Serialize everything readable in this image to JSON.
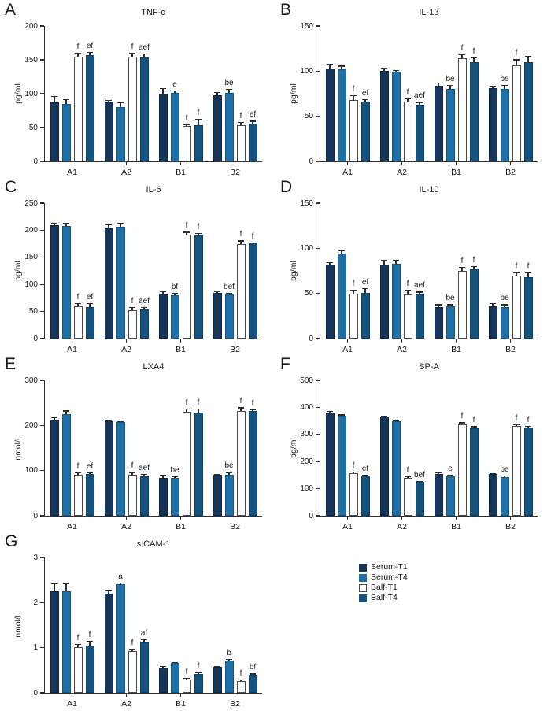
{
  "colors": {
    "serum_t1": "#16355B",
    "serum_t4": "#2070A8",
    "balf_t1_fill": "#FFFFFF",
    "balf_t1_border": "#4A4A4A",
    "balf_t4": "#14537F",
    "axis": "#2F2F2F",
    "error_bar": "#2B2B2B",
    "text": "#1A1A1A"
  },
  "series_styles": [
    {
      "name": "Serum-T1",
      "fill": "#16355B",
      "border": "#10263F"
    },
    {
      "name": "Serum-T4",
      "fill": "#2070A8",
      "border": "#17557F"
    },
    {
      "name": "Balf-T1",
      "fill": "#FFFFFF",
      "border": "#4A4A4A"
    },
    {
      "name": "Balf-T4",
      "fill": "#14537F",
      "border": "#0F3E60"
    }
  ],
  "legend": {
    "position": "bottom-right",
    "entries": [
      {
        "label": "Serum-T1",
        "color": "#16355B"
      },
      {
        "label": "Serum-T4",
        "color": "#2070A8"
      },
      {
        "label": "Balf-T1",
        "color": "#FFFFFF"
      },
      {
        "label": "Balf-T4",
        "color": "#14537F"
      }
    ]
  },
  "chart_data": [
    {
      "type": "bar",
      "letter": "A",
      "title": "TNF-α",
      "ylabel": "pg/ml",
      "ylim": [
        0,
        200
      ],
      "yticks": [
        0,
        50,
        100,
        150,
        200
      ],
      "grid": false,
      "categories": [
        "A1",
        "A2",
        "B1",
        "B2"
      ],
      "series": [
        {
          "name": "Serum-T1",
          "values": [
            87,
            87,
            100,
            98
          ],
          "errors": [
            10,
            4,
            8,
            4
          ],
          "annotations": [
            "",
            "",
            "",
            ""
          ]
        },
        {
          "name": "Serum-T4",
          "values": [
            85,
            80,
            101,
            101
          ],
          "errors": [
            7,
            7,
            4,
            6
          ],
          "annotations": [
            "",
            "",
            "e",
            "be"
          ]
        },
        {
          "name": "Balf-T1",
          "values": [
            155,
            155,
            52,
            54
          ],
          "errors": [
            6,
            6,
            3,
            4
          ],
          "annotations": [
            "f",
            "f",
            "f",
            "f"
          ]
        },
        {
          "name": "Balf-T4",
          "values": [
            157,
            154,
            54,
            56
          ],
          "errors": [
            5,
            5,
            9,
            4
          ],
          "annotations": [
            "ef",
            "aef",
            "f",
            "ef"
          ]
        }
      ]
    },
    {
      "type": "bar",
      "letter": "B",
      "title": "IL-1β",
      "ylabel": "pg/ml",
      "ylim": [
        0,
        150
      ],
      "yticks": [
        0,
        50,
        100,
        150
      ],
      "grid": false,
      "categories": [
        "A1",
        "A2",
        "B1",
        "B2"
      ],
      "series": [
        {
          "name": "Serum-T1",
          "values": [
            103,
            100,
            84,
            81
          ],
          "errors": [
            5,
            4,
            3,
            3
          ],
          "annotations": [
            "",
            "",
            "",
            ""
          ]
        },
        {
          "name": "Serum-T4",
          "values": [
            102,
            99,
            80,
            80
          ],
          "errors": [
            4,
            2,
            5,
            5
          ],
          "annotations": [
            "",
            "",
            "be",
            "be"
          ]
        },
        {
          "name": "Balf-T1",
          "values": [
            68,
            66,
            114,
            106
          ],
          "errors": [
            5,
            4,
            5,
            7
          ],
          "annotations": [
            "f",
            "f",
            "f",
            "f"
          ]
        },
        {
          "name": "Balf-T4",
          "values": [
            66,
            63,
            110,
            110
          ],
          "errors": [
            3,
            3,
            5,
            7
          ],
          "annotations": [
            "ef",
            "aef",
            "f",
            ""
          ]
        }
      ]
    },
    {
      "type": "bar",
      "letter": "C",
      "title": "IL-6",
      "ylabel": "pg/ml",
      "ylim": [
        0,
        250
      ],
      "yticks": [
        0,
        50,
        100,
        150,
        200,
        250
      ],
      "grid": false,
      "categories": [
        "A1",
        "A2",
        "B1",
        "B2"
      ],
      "series": [
        {
          "name": "Serum-T1",
          "values": [
            209,
            204,
            83,
            84
          ],
          "errors": [
            4,
            7,
            5,
            4
          ],
          "annotations": [
            "",
            "",
            "",
            ""
          ]
        },
        {
          "name": "Serum-T4",
          "values": [
            208,
            206,
            80,
            81
          ],
          "errors": [
            5,
            8,
            4,
            3
          ],
          "annotations": [
            "",
            "",
            "bf",
            "bef"
          ]
        },
        {
          "name": "Balf-T1",
          "values": [
            60,
            53,
            192,
            175
          ],
          "errors": [
            5,
            5,
            5,
            6
          ],
          "annotations": [
            "f",
            "f",
            "f",
            "f"
          ]
        },
        {
          "name": "Balf-T4",
          "values": [
            58,
            54,
            190,
            176
          ],
          "errors": [
            7,
            4,
            5,
            2
          ],
          "annotations": [
            "ef",
            "aef",
            "f",
            "f"
          ]
        }
      ]
    },
    {
      "type": "bar",
      "letter": "D",
      "title": "IL-10",
      "ylabel": "pg/ml",
      "ylim": [
        0,
        150
      ],
      "yticks": [
        0,
        50,
        100,
        150
      ],
      "grid": false,
      "categories": [
        "A1",
        "A2",
        "B1",
        "B2"
      ],
      "series": [
        {
          "name": "Serum-T1",
          "values": [
            82,
            82,
            35,
            36
          ],
          "errors": [
            3,
            5,
            3,
            3
          ],
          "annotations": [
            "",
            "",
            "",
            ""
          ]
        },
        {
          "name": "Serum-T4",
          "values": [
            94,
            83,
            36,
            35
          ],
          "errors": [
            4,
            4,
            2,
            3
          ],
          "annotations": [
            "",
            "",
            "be",
            "be"
          ]
        },
        {
          "name": "Balf-T1",
          "values": [
            50,
            49,
            75,
            70
          ],
          "errors": [
            4,
            5,
            4,
            3
          ],
          "annotations": [
            "f",
            "f",
            "f",
            "f"
          ]
        },
        {
          "name": "Balf-T4",
          "values": [
            51,
            49,
            77,
            68
          ],
          "errors": [
            5,
            3,
            3,
            5
          ],
          "annotations": [
            "ef",
            "aef",
            "f",
            "f"
          ]
        }
      ]
    },
    {
      "type": "bar",
      "letter": "E",
      "title": "LXA4",
      "ylabel": "nmol/L",
      "ylim": [
        0,
        300
      ],
      "yticks": [
        0,
        100,
        200,
        300
      ],
      "grid": false,
      "categories": [
        "A1",
        "A2",
        "B1",
        "B2"
      ],
      "series": [
        {
          "name": "Serum-T1",
          "values": [
            213,
            209,
            83,
            91
          ],
          "errors": [
            5,
            2,
            7,
            2
          ],
          "annotations": [
            "",
            "",
            "",
            ""
          ]
        },
        {
          "name": "Serum-T4",
          "values": [
            225,
            208,
            83,
            90
          ],
          "errors": [
            8,
            2,
            5,
            7
          ],
          "annotations": [
            "",
            "",
            "be",
            "be"
          ]
        },
        {
          "name": "Balf-T1",
          "values": [
            90,
            91,
            231,
            232
          ],
          "errors": [
            6,
            6,
            7,
            8
          ],
          "annotations": [
            "f",
            "f",
            "f",
            "f"
          ]
        },
        {
          "name": "Balf-T4",
          "values": [
            92,
            88,
            228,
            232
          ],
          "errors": [
            4,
            5,
            10,
            4
          ],
          "annotations": [
            "ef",
            "aef",
            "f",
            "f"
          ]
        }
      ]
    },
    {
      "type": "bar",
      "letter": "F",
      "title": "SP-A",
      "ylabel": "pg/ml",
      "ylim": [
        0,
        500
      ],
      "yticks": [
        0,
        100,
        200,
        300,
        400,
        500
      ],
      "grid": false,
      "categories": [
        "A1",
        "A2",
        "B1",
        "B2"
      ],
      "series": [
        {
          "name": "Serum-T1",
          "values": [
            382,
            366,
            155,
            153
          ],
          "errors": [
            5,
            4,
            4,
            4
          ],
          "annotations": [
            "",
            "",
            "",
            ""
          ]
        },
        {
          "name": "Serum-T4",
          "values": [
            370,
            348,
            146,
            143
          ],
          "errors": [
            4,
            3,
            6,
            6
          ],
          "annotations": [
            "",
            "",
            "e",
            "be"
          ]
        },
        {
          "name": "Balf-T1",
          "values": [
            157,
            140,
            336,
            332
          ],
          "errors": [
            7,
            6,
            9,
            5
          ],
          "annotations": [
            "f",
            "f",
            "f",
            "f"
          ]
        },
        {
          "name": "Balf-T4",
          "values": [
            145,
            126,
            324,
            326
          ],
          "errors": [
            5,
            3,
            6,
            6
          ],
          "annotations": [
            "ef",
            "bef",
            "f",
            "f"
          ]
        }
      ]
    },
    {
      "type": "bar",
      "letter": "G",
      "title": "sICAM-1",
      "ylabel": "nmol/L",
      "ylim": [
        0,
        3
      ],
      "yticks": [
        0,
        1,
        2,
        3
      ],
      "grid": false,
      "categories": [
        "A1",
        "A2",
        "B1",
        "B2"
      ],
      "series": [
        {
          "name": "Serum-T1",
          "values": [
            2.25,
            2.2,
            0.55,
            0.57
          ],
          "errors": [
            0.18,
            0.08,
            0.05,
            0.02
          ],
          "annotations": [
            "",
            "",
            "",
            ""
          ]
        },
        {
          "name": "Serum-T4",
          "values": [
            2.25,
            2.4,
            0.66,
            0.72
          ],
          "errors": [
            0.18,
            0.05,
            0.02,
            0.03
          ],
          "annotations": [
            "",
            "a",
            "",
            "b"
          ]
        },
        {
          "name": "Balf-T1",
          "values": [
            1.02,
            0.92,
            0.29,
            0.27
          ],
          "errors": [
            0.07,
            0.06,
            0.04,
            0.03
          ],
          "annotations": [
            "f",
            "f",
            "f",
            "f"
          ]
        },
        {
          "name": "Balf-T4",
          "values": [
            1.05,
            1.12,
            0.41,
            0.4
          ],
          "errors": [
            0.1,
            0.07,
            0.04,
            0.03
          ],
          "annotations": [
            "f",
            "af",
            "f",
            "bf"
          ]
        }
      ]
    }
  ]
}
